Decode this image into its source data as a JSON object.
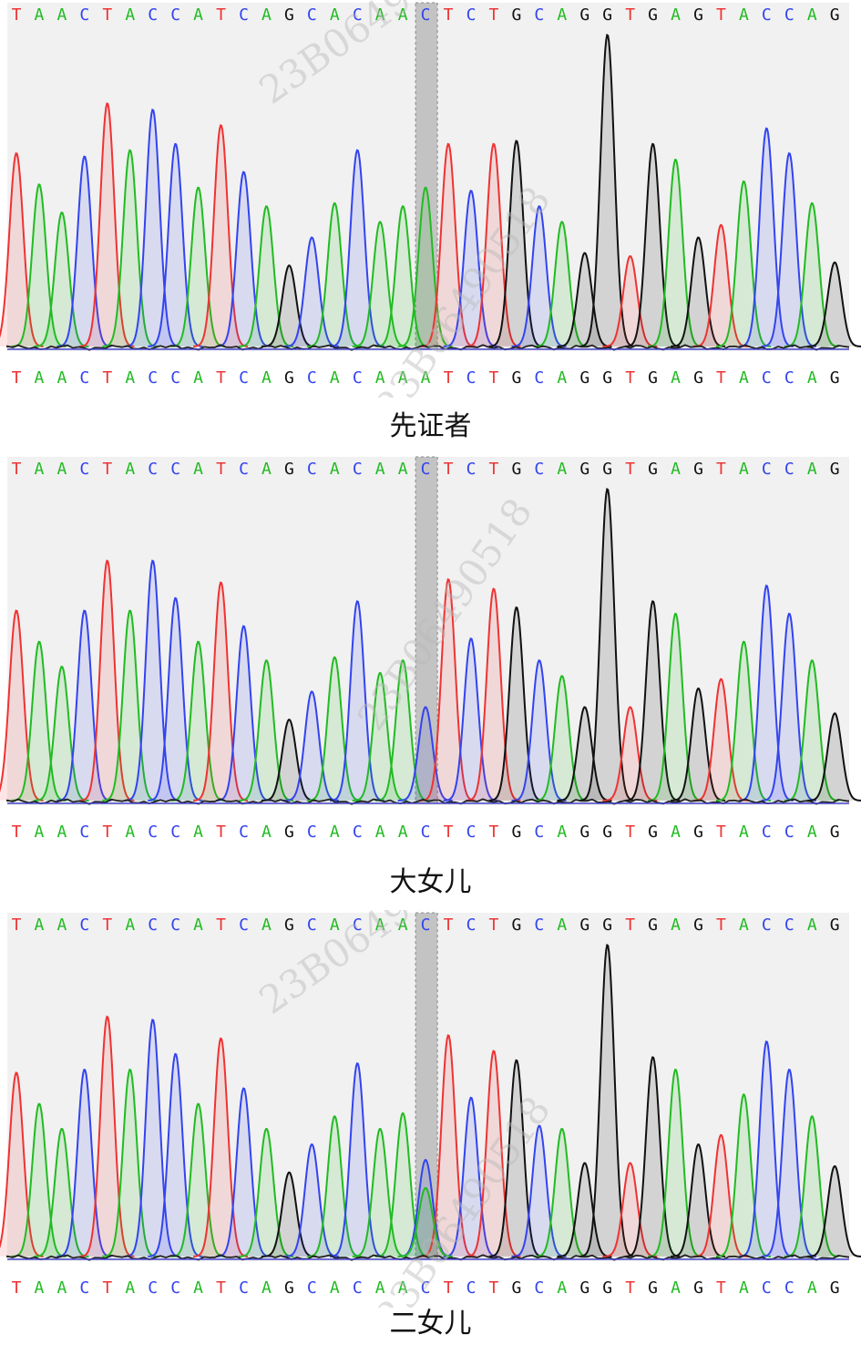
{
  "colors": {
    "A": "#22bb22",
    "C": "#3344ee",
    "G": "#111111",
    "T": "#ee3333",
    "highlight": "#bbbbbb"
  },
  "watermark": "23B06490518",
  "panels": [
    {
      "caption": "先证者",
      "top_sequence": "TAACTACCATCAGCACAACTCTGCAGGTGAGTACCAG",
      "bottom_sequence": "TAACTACCATCAGCACAAATCTGCAGGTGAGTACCAG",
      "highlight_index": 18
    },
    {
      "caption": "大女儿",
      "top_sequence": "TAACTACCATCAGCACAACTCTGCAGGTGAGTACCAG",
      "bottom_sequence": "TAACTACCATCAGCACAACTCTGCAGGTGAGTACCAG",
      "highlight_index": 18
    },
    {
      "caption": "二女儿",
      "top_sequence": "TAACTACCATCAGCACAACTCTGCAGGTGAGTACCAG",
      "bottom_sequence": "TAACTACCATCAGCACAACTCTGCAGGTGAGTACCAG",
      "highlight_index": 18
    }
  ],
  "chart_data": [
    {
      "type": "line",
      "title": "先证者",
      "channels": [
        "A",
        "C",
        "G",
        "T"
      ],
      "peaks": [
        {
          "base": "T",
          "height": 0.62
        },
        {
          "base": "A",
          "height": 0.52
        },
        {
          "base": "A",
          "height": 0.43
        },
        {
          "base": "C",
          "height": 0.61
        },
        {
          "base": "T",
          "height": 0.78
        },
        {
          "base": "A",
          "height": 0.63
        },
        {
          "base": "C",
          "height": 0.76
        },
        {
          "base": "C",
          "height": 0.65
        },
        {
          "base": "A",
          "height": 0.51
        },
        {
          "base": "T",
          "height": 0.71
        },
        {
          "base": "C",
          "height": 0.56
        },
        {
          "base": "A",
          "height": 0.45
        },
        {
          "base": "G",
          "height": 0.26
        },
        {
          "base": "C",
          "height": 0.35
        },
        {
          "base": "A",
          "height": 0.46
        },
        {
          "base": "C",
          "height": 0.63
        },
        {
          "base": "A",
          "height": 0.4
        },
        {
          "base": "A",
          "height": 0.45
        },
        {
          "base": "A",
          "height": 0.51
        },
        {
          "base": "T",
          "height": 0.65
        },
        {
          "base": "C",
          "height": 0.5
        },
        {
          "base": "T",
          "height": 0.65
        },
        {
          "base": "G",
          "height": 0.66
        },
        {
          "base": "C",
          "height": 0.45
        },
        {
          "base": "A",
          "height": 0.4
        },
        {
          "base": "G",
          "height": 0.3
        },
        {
          "base": "G",
          "height": 1.0
        },
        {
          "base": "T",
          "height": 0.29
        },
        {
          "base": "G",
          "height": 0.65
        },
        {
          "base": "A",
          "height": 0.6
        },
        {
          "base": "G",
          "height": 0.35
        },
        {
          "base": "T",
          "height": 0.39
        },
        {
          "base": "A",
          "height": 0.53
        },
        {
          "base": "C",
          "height": 0.7
        },
        {
          "base": "C",
          "height": 0.62
        },
        {
          "base": "A",
          "height": 0.46
        },
        {
          "base": "G",
          "height": 0.27
        }
      ],
      "highlight": {
        "position": 19,
        "peaks": [
          {
            "base": "A",
            "height": 0.51
          }
        ]
      }
    },
    {
      "type": "line",
      "title": "大女儿",
      "channels": [
        "A",
        "C",
        "G",
        "T"
      ],
      "peaks": [
        {
          "base": "T",
          "height": 0.61
        },
        {
          "base": "A",
          "height": 0.51
        },
        {
          "base": "A",
          "height": 0.43
        },
        {
          "base": "C",
          "height": 0.61
        },
        {
          "base": "T",
          "height": 0.77
        },
        {
          "base": "A",
          "height": 0.61
        },
        {
          "base": "C",
          "height": 0.77
        },
        {
          "base": "C",
          "height": 0.65
        },
        {
          "base": "A",
          "height": 0.51
        },
        {
          "base": "T",
          "height": 0.7
        },
        {
          "base": "C",
          "height": 0.56
        },
        {
          "base": "A",
          "height": 0.45
        },
        {
          "base": "G",
          "height": 0.26
        },
        {
          "base": "C",
          "height": 0.35
        },
        {
          "base": "A",
          "height": 0.46
        },
        {
          "base": "C",
          "height": 0.64
        },
        {
          "base": "A",
          "height": 0.41
        },
        {
          "base": "A",
          "height": 0.45
        },
        {
          "base": "C",
          "height": 0.3
        },
        {
          "base": "T",
          "height": 0.71
        },
        {
          "base": "C",
          "height": 0.52
        },
        {
          "base": "T",
          "height": 0.68
        },
        {
          "base": "G",
          "height": 0.62
        },
        {
          "base": "C",
          "height": 0.45
        },
        {
          "base": "A",
          "height": 0.4
        },
        {
          "base": "G",
          "height": 0.3
        },
        {
          "base": "G",
          "height": 1.0
        },
        {
          "base": "T",
          "height": 0.3
        },
        {
          "base": "G",
          "height": 0.64
        },
        {
          "base": "A",
          "height": 0.6
        },
        {
          "base": "G",
          "height": 0.36
        },
        {
          "base": "T",
          "height": 0.39
        },
        {
          "base": "A",
          "height": 0.51
        },
        {
          "base": "C",
          "height": 0.69
        },
        {
          "base": "C",
          "height": 0.6
        },
        {
          "base": "A",
          "height": 0.45
        },
        {
          "base": "G",
          "height": 0.28
        }
      ],
      "highlight": {
        "position": 19,
        "peaks": [
          {
            "base": "C",
            "height": 0.3
          }
        ]
      }
    },
    {
      "type": "line",
      "title": "二女儿",
      "channels": [
        "A",
        "C",
        "G",
        "T"
      ],
      "peaks": [
        {
          "base": "T",
          "height": 0.59
        },
        {
          "base": "A",
          "height": 0.49
        },
        {
          "base": "A",
          "height": 0.41
        },
        {
          "base": "C",
          "height": 0.6
        },
        {
          "base": "T",
          "height": 0.77
        },
        {
          "base": "A",
          "height": 0.6
        },
        {
          "base": "C",
          "height": 0.76
        },
        {
          "base": "C",
          "height": 0.65
        },
        {
          "base": "A",
          "height": 0.49
        },
        {
          "base": "T",
          "height": 0.7
        },
        {
          "base": "C",
          "height": 0.54
        },
        {
          "base": "A",
          "height": 0.41
        },
        {
          "base": "G",
          "height": 0.27
        },
        {
          "base": "C",
          "height": 0.36
        },
        {
          "base": "A",
          "height": 0.45
        },
        {
          "base": "C",
          "height": 0.62
        },
        {
          "base": "A",
          "height": 0.41
        },
        {
          "base": "A",
          "height": 0.46
        },
        {
          "base": "C",
          "height": 0.31
        },
        {
          "base": "T",
          "height": 0.71
        },
        {
          "base": "C",
          "height": 0.51
        },
        {
          "base": "T",
          "height": 0.66
        },
        {
          "base": "G",
          "height": 0.63
        },
        {
          "base": "C",
          "height": 0.42
        },
        {
          "base": "A",
          "height": 0.41
        },
        {
          "base": "G",
          "height": 0.3
        },
        {
          "base": "G",
          "height": 1.0
        },
        {
          "base": "T",
          "height": 0.3
        },
        {
          "base": "G",
          "height": 0.64
        },
        {
          "base": "A",
          "height": 0.6
        },
        {
          "base": "G",
          "height": 0.36
        },
        {
          "base": "T",
          "height": 0.39
        },
        {
          "base": "A",
          "height": 0.52
        },
        {
          "base": "C",
          "height": 0.69
        },
        {
          "base": "C",
          "height": 0.6
        },
        {
          "base": "A",
          "height": 0.45
        },
        {
          "base": "G",
          "height": 0.29
        }
      ],
      "highlight": {
        "position": 19,
        "peaks": [
          {
            "base": "C",
            "height": 0.31
          },
          {
            "base": "A",
            "height": 0.22
          }
        ]
      }
    }
  ]
}
